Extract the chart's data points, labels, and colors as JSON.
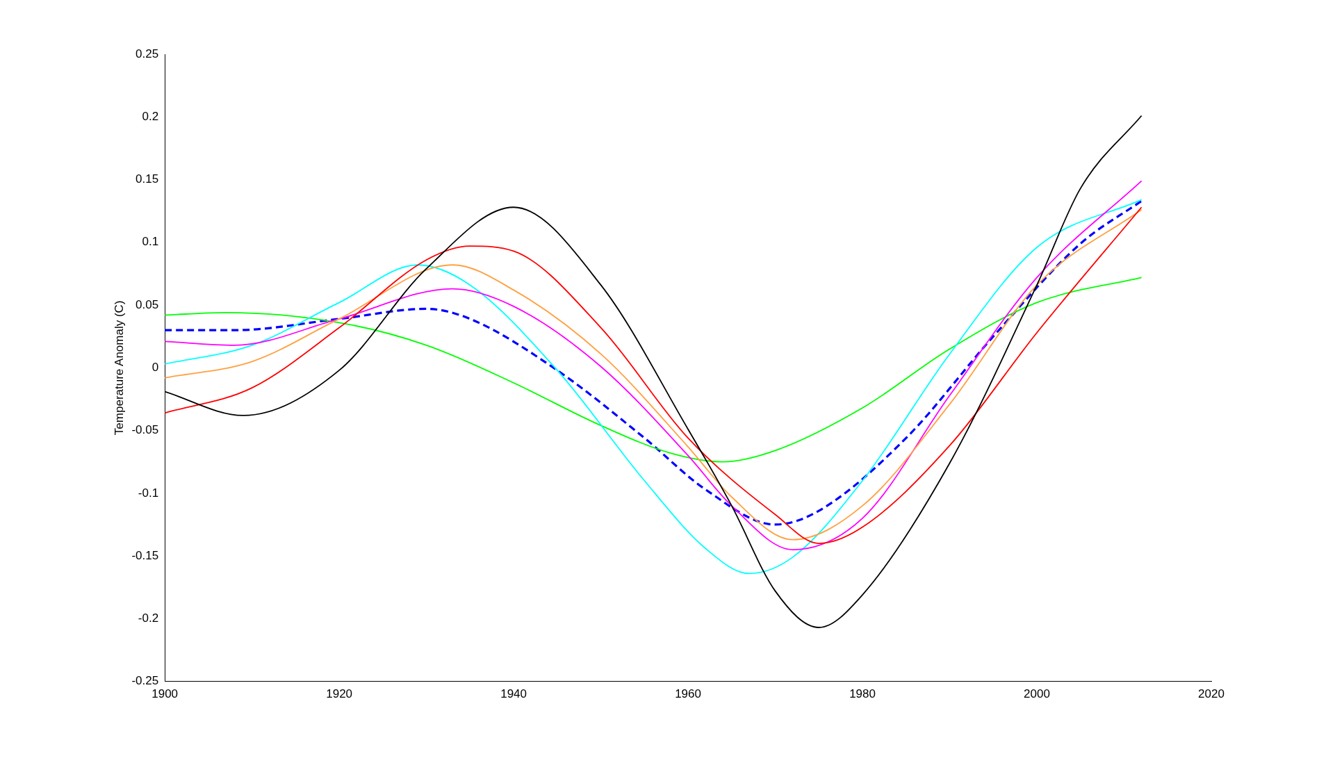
{
  "chart_data": {
    "type": "line",
    "ylabel": "Temperature Anomaly (C)",
    "xlim": [
      1900,
      2020
    ],
    "xticks": [
      1900,
      1920,
      1940,
      1960,
      1980,
      2000,
      2020
    ],
    "ylim": [
      -0.25,
      0.25
    ],
    "yticks": [
      -0.25,
      -0.2,
      -0.15,
      -0.1,
      -0.05,
      0,
      0.05,
      0.1,
      0.15,
      0.2,
      0.25
    ],
    "grid": false,
    "legend": false,
    "marker": "none",
    "series": [
      {
        "color": "#000000",
        "x": [
          1900,
          1909,
          1920,
          1930,
          1940,
          1950,
          1960,
          1965,
          1970,
          1975,
          1980,
          1990,
          2000,
          2005,
          2012
        ],
        "values": [
          -0.019,
          -0.038,
          -0.002,
          0.079,
          0.128,
          0.066,
          -0.049,
          -0.11,
          -0.178,
          -0.207,
          -0.181,
          -0.076,
          0.066,
          0.143,
          0.201
        ]
      },
      {
        "color": "#ff0000",
        "x": [
          1900,
          1910,
          1920,
          1930,
          1935,
          1940,
          1950,
          1960,
          1970,
          1975,
          1980,
          1990,
          2000,
          2012
        ],
        "values": [
          -0.036,
          -0.016,
          0.032,
          0.086,
          0.097,
          0.093,
          0.032,
          -0.056,
          -0.117,
          -0.14,
          -0.127,
          -0.062,
          0.028,
          0.128
        ]
      },
      {
        "color": "#ffa040",
        "x": [
          1900,
          1910,
          1920,
          1933,
          1940,
          1950,
          1960,
          1965,
          1972,
          1980,
          1990,
          2000,
          2012
        ],
        "values": [
          -0.008,
          0.005,
          0.039,
          0.082,
          0.062,
          0.011,
          -0.063,
          -0.103,
          -0.137,
          -0.11,
          -0.029,
          0.066,
          0.126
        ]
      },
      {
        "color": "#ff00ff",
        "x": [
          1900,
          1908,
          1920,
          1933,
          1940,
          1950,
          1960,
          1965,
          1972,
          1980,
          1990,
          2000,
          2012
        ],
        "values": [
          0.021,
          0.018,
          0.039,
          0.063,
          0.049,
          0.001,
          -0.07,
          -0.11,
          -0.145,
          -0.12,
          -0.022,
          0.072,
          0.149
        ]
      },
      {
        "color": "#00ffff",
        "x": [
          1900,
          1910,
          1920,
          1929,
          1935,
          1945,
          1955,
          1962,
          1967,
          1972,
          1980,
          1990,
          2000,
          2012
        ],
        "values": [
          0.003,
          0.018,
          0.052,
          0.082,
          0.066,
          -0.002,
          -0.09,
          -0.144,
          -0.164,
          -0.151,
          -0.09,
          0.011,
          0.096,
          0.134
        ]
      },
      {
        "color": "#00ff00",
        "x": [
          1900,
          1907,
          1920,
          1930,
          1940,
          1950,
          1958,
          1964,
          1970,
          1980,
          1990,
          2000,
          2012
        ],
        "values": [
          0.042,
          0.044,
          0.036,
          0.018,
          -0.012,
          -0.046,
          -0.068,
          -0.075,
          -0.066,
          -0.032,
          0.015,
          0.052,
          0.072
        ]
      },
      {
        "color": "#0000ff",
        "line_style": "dashed",
        "x": [
          1900,
          1908,
          1920,
          1930,
          1935,
          1945,
          1955,
          1962,
          1970,
          1975,
          1985,
          1995,
          2005,
          2012
        ],
        "values": [
          0.03,
          0.03,
          0.039,
          0.047,
          0.039,
          -0.002,
          -0.056,
          -0.097,
          -0.125,
          -0.114,
          -0.056,
          0.025,
          0.099,
          0.133
        ]
      }
    ]
  }
}
